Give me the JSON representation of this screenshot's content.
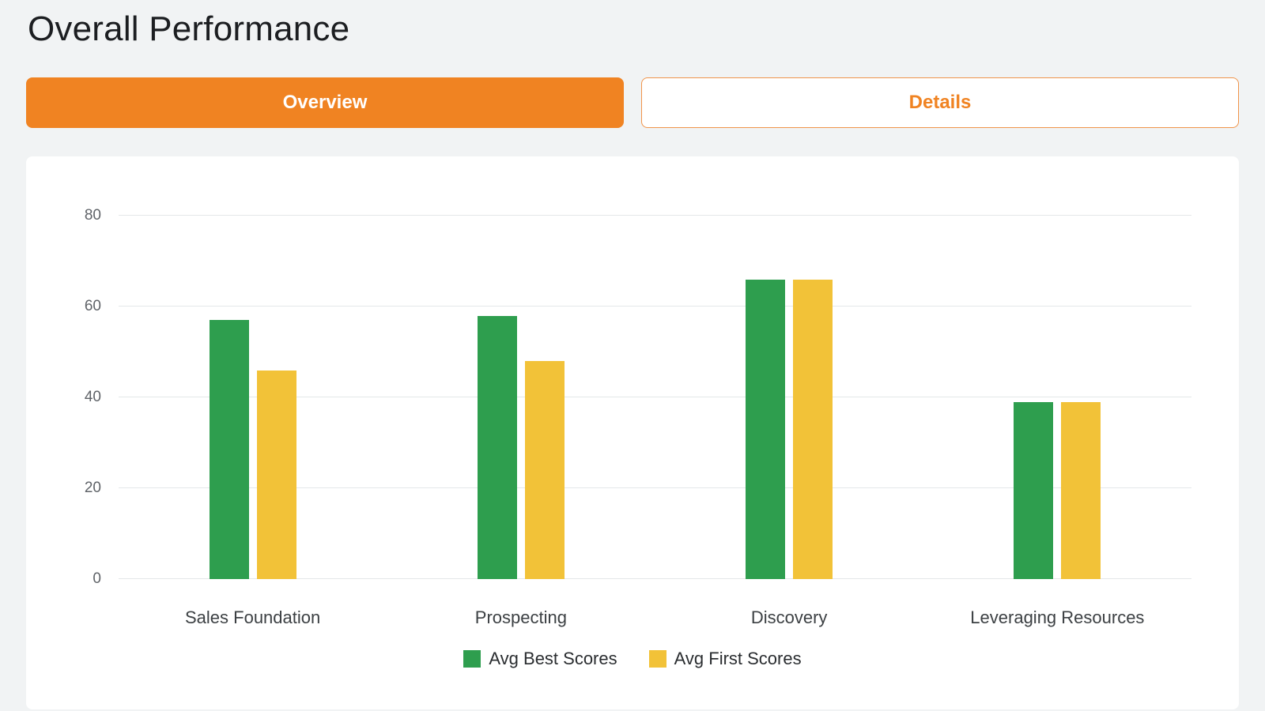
{
  "page": {
    "title": "Overall Performance",
    "background_color": "#f1f3f4"
  },
  "tabs": [
    {
      "label": "Overview",
      "active": true
    },
    {
      "label": "Details",
      "active": false
    }
  ],
  "colors": {
    "accent_orange": "#f08322",
    "series_green": "#2e9e4e",
    "series_yellow": "#f2c238",
    "gridline": "#e4e7e9"
  },
  "chart_data": {
    "type": "bar",
    "title": "",
    "xlabel": "",
    "ylabel": "",
    "categories": [
      "Sales Foundation",
      "Prospecting",
      "Discovery",
      "Leveraging Resources"
    ],
    "series": [
      {
        "name": "Avg Best Scores",
        "color": "#2e9e4e",
        "values": [
          57,
          58,
          66,
          39
        ]
      },
      {
        "name": "Avg First Scores",
        "color": "#f2c238",
        "values": [
          46,
          48,
          66,
          39
        ]
      }
    ],
    "ylim": [
      0,
      80
    ],
    "yticks": [
      0,
      20,
      40,
      60,
      80
    ],
    "grid": true,
    "legend_position": "bottom"
  }
}
